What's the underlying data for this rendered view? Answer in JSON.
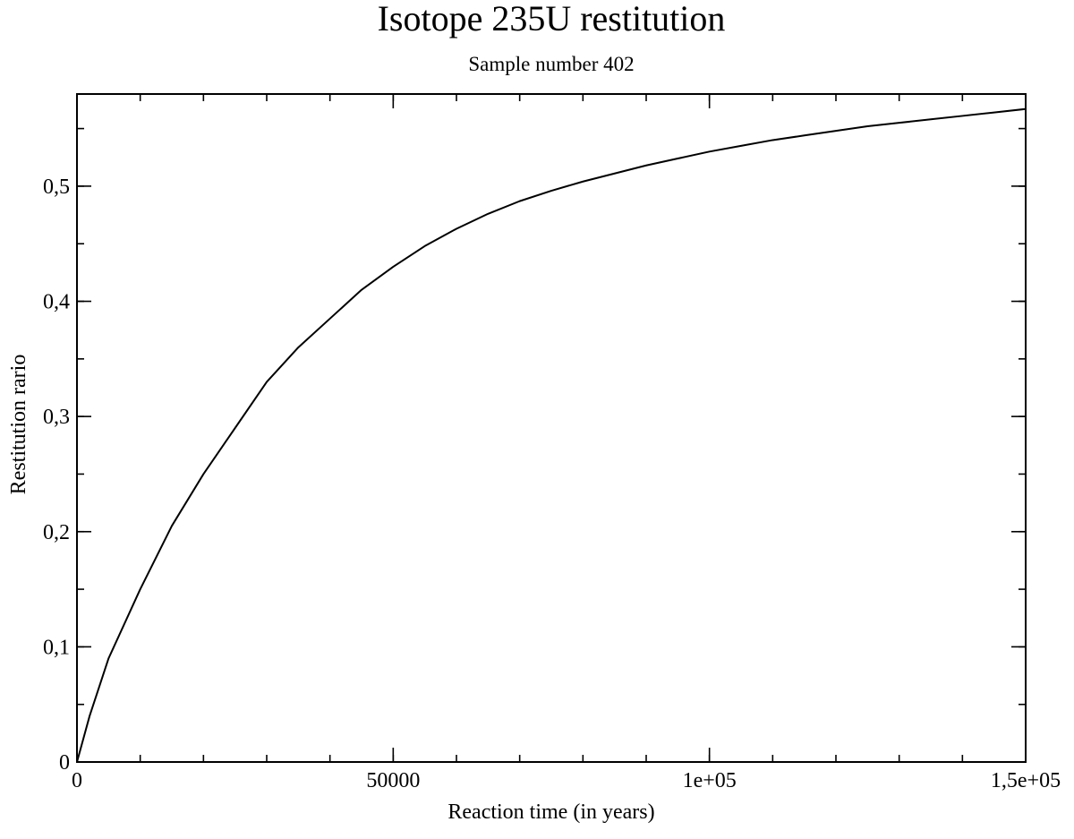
{
  "chart_data": {
    "type": "line",
    "title": "Isotope 235U restitution",
    "subtitle": "Sample number 402",
    "xlabel": "Reaction time (in years)",
    "ylabel": "Restitution rario",
    "xlim": [
      0,
      150000
    ],
    "ylim": [
      0,
      0.58
    ],
    "x_ticks": [
      {
        "value": 0,
        "label": "0"
      },
      {
        "value": 50000,
        "label": "50000"
      },
      {
        "value": 100000,
        "label": "1e+05"
      },
      {
        "value": 150000,
        "label": "1,5e+05"
      }
    ],
    "x_minor_step": 10000,
    "y_ticks": [
      {
        "value": 0,
        "label": "0"
      },
      {
        "value": 0.1,
        "label": "0,1"
      },
      {
        "value": 0.2,
        "label": "0,2"
      },
      {
        "value": 0.3,
        "label": "0,3"
      },
      {
        "value": 0.4,
        "label": "0,4"
      },
      {
        "value": 0.5,
        "label": "0,5"
      }
    ],
    "y_minor_step": 0.05,
    "grid": false,
    "series": [
      {
        "x": [
          0,
          2000,
          5000,
          10000,
          15000,
          20000,
          25000,
          30000,
          35000,
          40000,
          45000,
          50000,
          55000,
          60000,
          65000,
          70000,
          75000,
          80000,
          85000,
          90000,
          95000,
          100000,
          105000,
          110000,
          115000,
          120000,
          125000,
          130000,
          135000,
          140000,
          145000,
          150000
        ],
        "y": [
          0,
          0.04,
          0.09,
          0.15,
          0.205,
          0.25,
          0.29,
          0.33,
          0.36,
          0.385,
          0.41,
          0.43,
          0.448,
          0.463,
          0.476,
          0.487,
          0.496,
          0.504,
          0.511,
          0.518,
          0.524,
          0.53,
          0.535,
          0.54,
          0.544,
          0.548,
          0.552,
          0.555,
          0.558,
          0.561,
          0.564,
          0.567
        ]
      }
    ]
  }
}
